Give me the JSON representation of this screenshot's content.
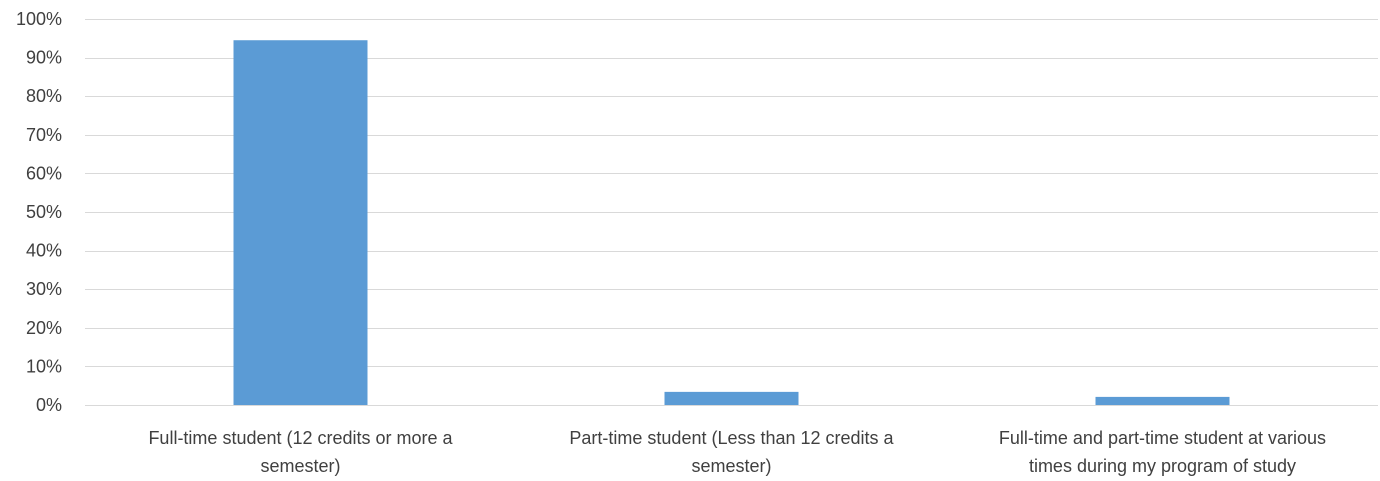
{
  "chart_data": {
    "type": "bar",
    "title": "",
    "xlabel": "",
    "ylabel": "",
    "categories": [
      [
        "Full-time student (12 credits or more a",
        "semester)"
      ],
      [
        "Part-time student (Less than 12 credits a",
        "semester)"
      ],
      [
        "Full-time and part-time student at various",
        "times during my program of study"
      ]
    ],
    "values": [
      94.5,
      3.4,
      2.1
    ],
    "ylim": [
      0,
      100
    ],
    "yticks": [
      0,
      10,
      20,
      30,
      40,
      50,
      60,
      70,
      80,
      90,
      100
    ],
    "ytick_labels": [
      "0%",
      "10%",
      "20%",
      "30%",
      "40%",
      "50%",
      "60%",
      "70%",
      "80%",
      "90%",
      "100%"
    ],
    "grid": true,
    "legend": "none",
    "colors": {
      "bar": "#5b9bd5",
      "grid": "#d9d9d9",
      "text": "#404040"
    }
  }
}
